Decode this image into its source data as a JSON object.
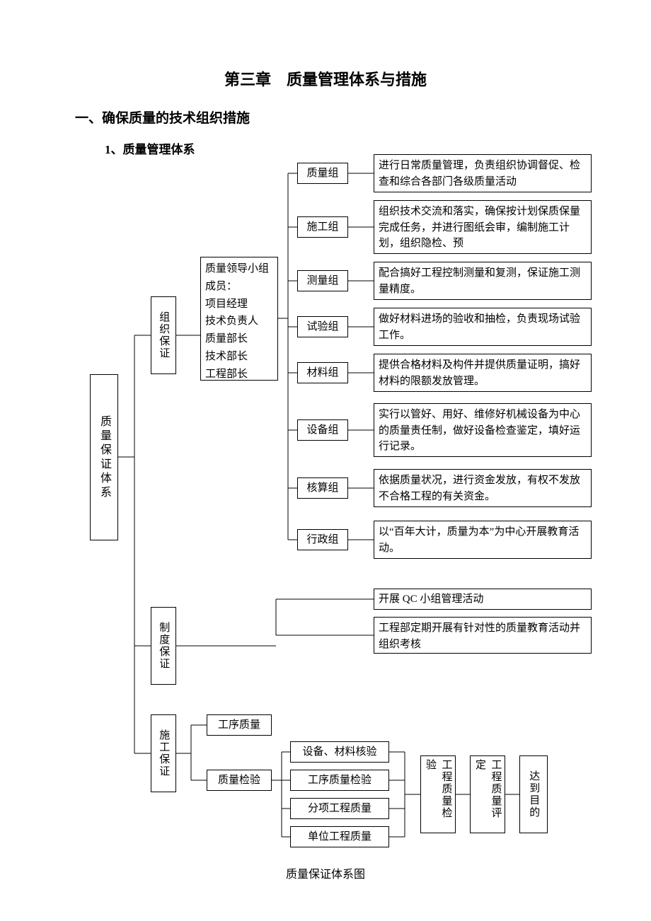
{
  "page": {
    "title": "第三章　质量管理体系与措施",
    "section": "一、确保质量的技术组织措施",
    "subsection": "1、质量管理体系",
    "caption": "质量保证体系图"
  },
  "root": {
    "label": "质量保证体系"
  },
  "branches": {
    "org": {
      "label": "组织保证"
    },
    "sys": {
      "label": "制度保证"
    },
    "con": {
      "label": "施工保证"
    }
  },
  "members_box": "质量领导小组成员：\n项目经理\n技术负责人\n质量部长\n技术部长\n工程部长",
  "groups": [
    {
      "name": "质量组",
      "desc": "进行日常质量管理，负责组织协调督促、检查和综合各部门各级质量活动"
    },
    {
      "name": "施工组",
      "desc": "组织技术交流和落实，确保按计划保质保量完成任务，并进行图纸会审，编制施工计划，组织隐检、预"
    },
    {
      "name": "测量组",
      "desc": "配合搞好工程控制测量和复测，保证施工测量精度。"
    },
    {
      "name": "试验组",
      "desc": "做好材料进场的验收和抽检，负责现场试验工作。"
    },
    {
      "name": "材料组",
      "desc": "提供合格材料及构件并提供质量证明，搞好材料的限额发放管理。"
    },
    {
      "name": "设备组",
      "desc": "实行以管好、用好、维修好机械设备为中心的质量责任制，做好设备检查鉴定，填好运行记录。"
    },
    {
      "name": "核算组",
      "desc": "依据质量状况，进行资金发放，有权不发放不合格工程的有关资金。"
    },
    {
      "name": "行政组",
      "desc": "以“百年大计，质量为本”为中心开展教育活动。"
    }
  ],
  "sys_items": [
    "开展 QC 小组管理活动",
    "工程部定期开展有针对性的质量教育活动并组织考核"
  ],
  "con_items": {
    "proc_quality": "工序质量",
    "quality_check": "质量检验",
    "checks": [
      "设备、材料核验",
      "工序质量检验",
      "分项工程质量",
      "单位工程质量"
    ],
    "flow": [
      "工程质量检验",
      "工程质量评定",
      "达到目的"
    ]
  },
  "style": {
    "bg": "#ffffff",
    "border": "#000000",
    "text": "#000000",
    "title_fontsize": 22,
    "section_fontsize": 19,
    "subsection_fontsize": 17,
    "body_fontsize": 15
  }
}
